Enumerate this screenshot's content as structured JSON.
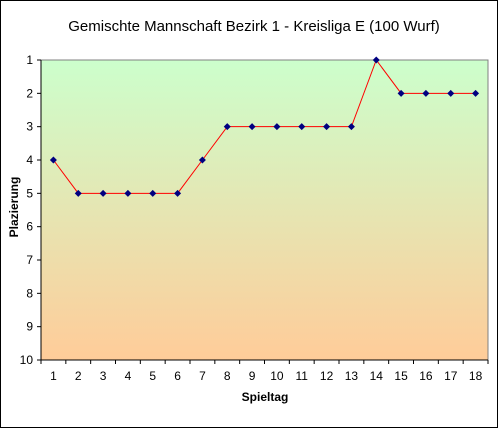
{
  "chart_data": {
    "type": "line",
    "title": "Gemischte Mannschaft   Bezirk 1 - Kreisliga E  (100 Wurf)",
    "xlabel": "Spieltag",
    "ylabel": "Plazierung",
    "x": [
      1,
      2,
      3,
      4,
      5,
      6,
      7,
      8,
      9,
      10,
      11,
      12,
      13,
      14,
      15,
      16,
      17,
      18
    ],
    "series": [
      {
        "values": [
          4,
          5,
          5,
          5,
          5,
          5,
          4,
          3,
          3,
          3,
          3,
          3,
          3,
          1,
          2,
          2,
          2,
          2
        ]
      }
    ],
    "ylim": [
      1,
      10
    ],
    "y_inverted": true,
    "y_ticks": [
      1,
      2,
      3,
      4,
      5,
      6,
      7,
      8,
      9,
      10
    ],
    "grid": false,
    "legend": false,
    "colors": {
      "line": "#ff0000",
      "marker": "#000080",
      "plot_gradient_top": "#ccffcc",
      "plot_gradient_bottom": "#ffcc99"
    }
  }
}
